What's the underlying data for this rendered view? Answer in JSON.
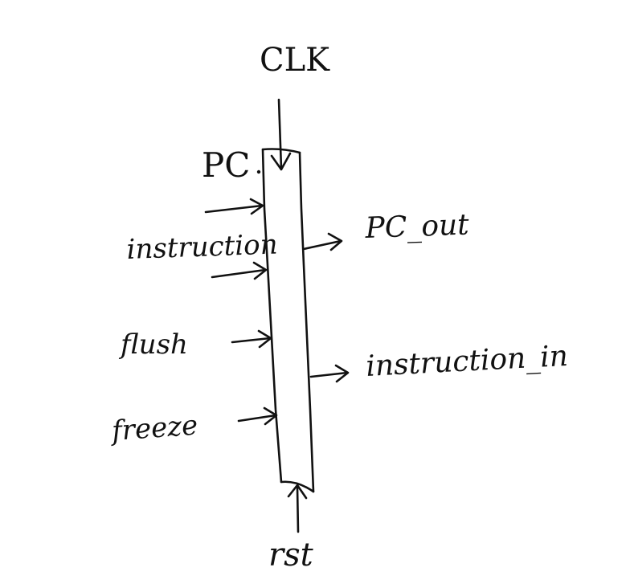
{
  "diagram": {
    "clock_label": "CLK",
    "reset_label": "rst",
    "inputs": {
      "pc": "PC",
      "instruction": "instruction",
      "flush": "flush",
      "freeze": "freeze"
    },
    "outputs": {
      "pc_out": "PC_out",
      "instruction_in": "instruction_in"
    }
  }
}
